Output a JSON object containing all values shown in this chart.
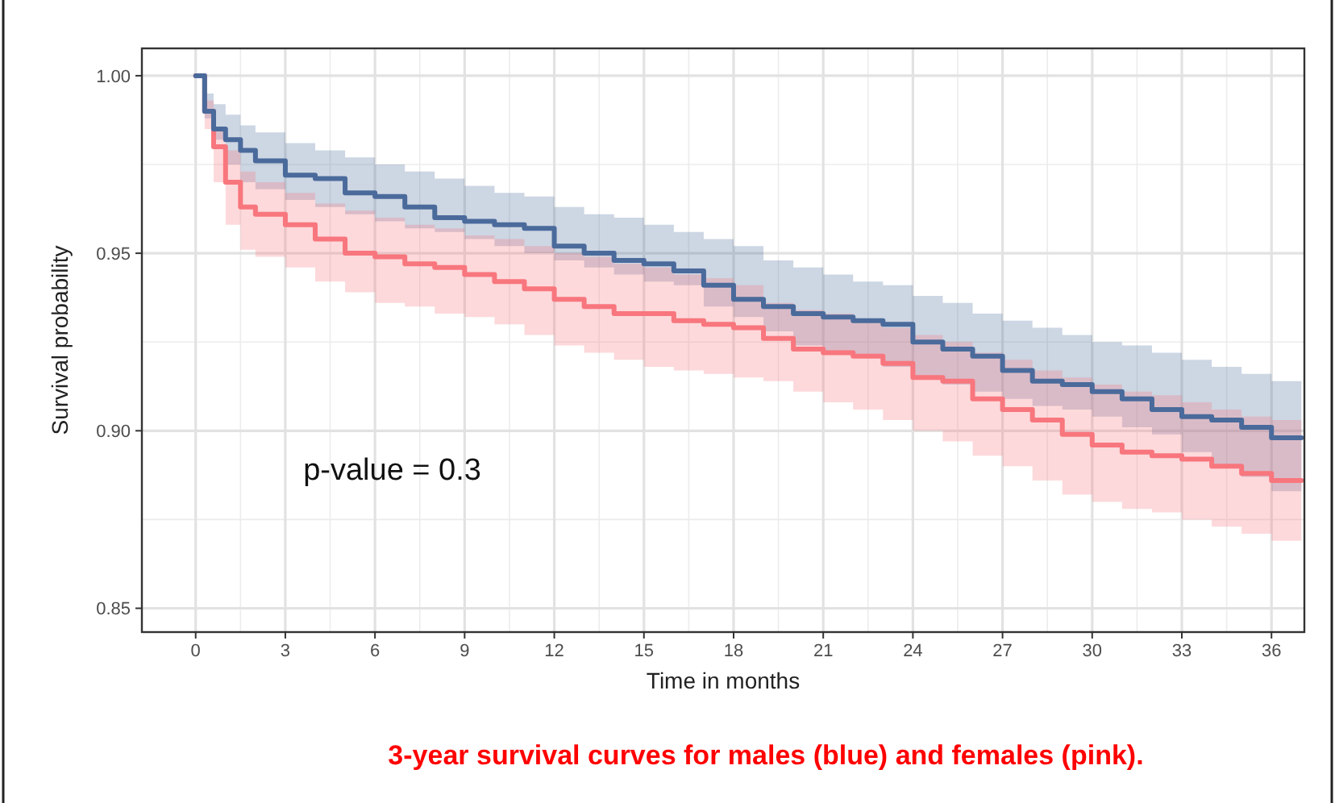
{
  "chart_data": {
    "type": "step",
    "xlabel": "Time in months",
    "ylabel": "Survival probability",
    "x": [
      0,
      0.3,
      0.6,
      1,
      1.5,
      2,
      3,
      4,
      5,
      6,
      7,
      8,
      9,
      10,
      11,
      12,
      13,
      14,
      15,
      16,
      17,
      18,
      19,
      20,
      21,
      22,
      23,
      24,
      25,
      26,
      27,
      28,
      29,
      30,
      31,
      32,
      33,
      34,
      35,
      36,
      37
    ],
    "series": [
      {
        "color": "#4a6a9b",
        "values": [
          1.0,
          0.99,
          0.985,
          0.982,
          0.979,
          0.976,
          0.972,
          0.971,
          0.967,
          0.966,
          0.963,
          0.96,
          0.959,
          0.958,
          0.957,
          0.952,
          0.95,
          0.948,
          0.947,
          0.945,
          0.941,
          0.937,
          0.935,
          0.933,
          0.932,
          0.931,
          0.93,
          0.925,
          0.923,
          0.921,
          0.917,
          0.914,
          0.913,
          0.911,
          0.909,
          0.906,
          0.904,
          0.903,
          0.901,
          0.898,
          0.898
        ],
        "upper": [
          1.0,
          0.995,
          0.992,
          0.989,
          0.986,
          0.984,
          0.981,
          0.979,
          0.977,
          0.975,
          0.973,
          0.971,
          0.969,
          0.967,
          0.966,
          0.963,
          0.961,
          0.96,
          0.958,
          0.956,
          0.954,
          0.952,
          0.948,
          0.946,
          0.944,
          0.942,
          0.941,
          0.938,
          0.936,
          0.933,
          0.931,
          0.929,
          0.927,
          0.925,
          0.924,
          0.922,
          0.92,
          0.918,
          0.916,
          0.914,
          0.914
        ],
        "lower": [
          1.0,
          0.988,
          0.982,
          0.975,
          0.97,
          0.968,
          0.965,
          0.963,
          0.961,
          0.959,
          0.957,
          0.956,
          0.954,
          0.952,
          0.95,
          0.948,
          0.946,
          0.944,
          0.942,
          0.941,
          0.935,
          0.932,
          0.928,
          0.924,
          0.922,
          0.921,
          0.918,
          0.915,
          0.913,
          0.911,
          0.909,
          0.907,
          0.906,
          0.904,
          0.901,
          0.899,
          0.894,
          0.89,
          0.887,
          0.883,
          0.882
        ]
      },
      {
        "color": "#f8767d",
        "values": [
          1.0,
          0.99,
          0.98,
          0.97,
          0.963,
          0.961,
          0.958,
          0.954,
          0.95,
          0.949,
          0.947,
          0.946,
          0.944,
          0.942,
          0.94,
          0.937,
          0.935,
          0.933,
          0.933,
          0.931,
          0.93,
          0.929,
          0.926,
          0.923,
          0.922,
          0.921,
          0.919,
          0.915,
          0.914,
          0.909,
          0.906,
          0.903,
          0.899,
          0.896,
          0.894,
          0.893,
          0.892,
          0.89,
          0.888,
          0.886,
          0.886
        ],
        "upper": [
          1.0,
          0.993,
          0.985,
          0.979,
          0.973,
          0.97,
          0.967,
          0.964,
          0.962,
          0.96,
          0.958,
          0.957,
          0.955,
          0.954,
          0.952,
          0.95,
          0.949,
          0.947,
          0.946,
          0.944,
          0.943,
          0.941,
          0.936,
          0.934,
          0.933,
          0.931,
          0.929,
          0.927,
          0.925,
          0.922,
          0.92,
          0.917,
          0.915,
          0.913,
          0.911,
          0.91,
          0.908,
          0.906,
          0.904,
          0.903,
          0.903
        ],
        "lower": [
          1.0,
          0.985,
          0.97,
          0.958,
          0.951,
          0.949,
          0.946,
          0.942,
          0.939,
          0.936,
          0.935,
          0.933,
          0.932,
          0.93,
          0.927,
          0.924,
          0.922,
          0.92,
          0.918,
          0.917,
          0.916,
          0.915,
          0.914,
          0.911,
          0.908,
          0.906,
          0.903,
          0.9,
          0.897,
          0.893,
          0.89,
          0.886,
          0.882,
          0.88,
          0.878,
          0.877,
          0.875,
          0.873,
          0.871,
          0.869,
          0.869
        ]
      }
    ],
    "xlim": [
      -1.8,
      37.1
    ],
    "xticks": [
      0,
      3,
      6,
      9,
      12,
      15,
      18,
      21,
      24,
      27,
      30,
      33,
      36
    ],
    "ylim": [
      0.8433,
      1.0077
    ],
    "yticks": [
      {
        "value": 0.85,
        "label": "0.85"
      },
      {
        "value": 0.9,
        "label": "0.90"
      },
      {
        "value": 0.95,
        "label": "0.95"
      },
      {
        "value": 1.0,
        "label": "1.00"
      }
    ],
    "grid": true,
    "legend": false,
    "annotations": [
      "p-value = 0.3",
      "3-year survival curves for males (blue) and females (pink)."
    ]
  }
}
